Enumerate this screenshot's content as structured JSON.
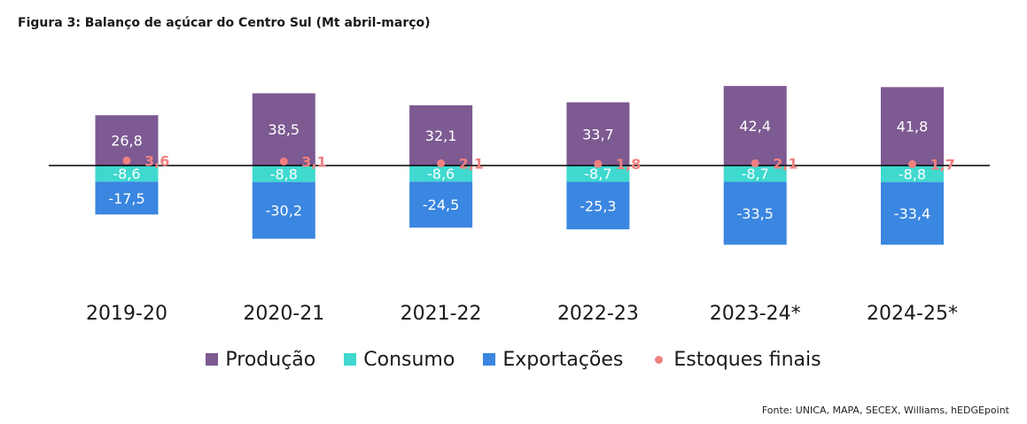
{
  "title": "Figura 3: Balanço de açúcar do Centro Sul (Mt abril-março)",
  "source": "Fonte: UNICA, MAPA, SECEX, Williams, hEDGEpoint",
  "chart_data": {
    "type": "bar",
    "stacked": true,
    "categories": [
      "2019-20",
      "2020-21",
      "2021-22",
      "2022-23",
      "2023-24*",
      "2024-25*"
    ],
    "series": [
      {
        "name": "Produção",
        "color": "#7d5a92",
        "values": [
          26.8,
          38.5,
          32.1,
          33.7,
          42.4,
          41.8
        ],
        "labels": [
          "26,8",
          "38,5",
          "32,1",
          "33,7",
          "42,4",
          "41,8"
        ]
      },
      {
        "name": "Consumo",
        "color": "#3fd9cf",
        "values": [
          -8.6,
          -8.8,
          -8.6,
          -8.7,
          -8.7,
          -8.8
        ],
        "labels": [
          "-8,6",
          "-8,8",
          "-8,6",
          "-8,7",
          "-8,7",
          "-8,8"
        ]
      },
      {
        "name": "Exportações",
        "color": "#3a86e0",
        "values": [
          -17.5,
          -30.2,
          -24.5,
          -25.3,
          -33.5,
          -33.4
        ],
        "labels": [
          "-17,5",
          "-30,2",
          "-24,5",
          "-25,3",
          "-33,5",
          "-33,4"
        ]
      },
      {
        "name": "Estoques finais",
        "type": "scatter",
        "color": "#f08080",
        "values": [
          3.6,
          3.1,
          2.1,
          1.8,
          2.1,
          1.7
        ],
        "labels": [
          "3,6",
          "3,1",
          "2,1",
          "1,8",
          "2,1",
          "1,7"
        ]
      }
    ],
    "ylim": [
      -50,
      50
    ],
    "grid": false,
    "legend": "bottom"
  }
}
